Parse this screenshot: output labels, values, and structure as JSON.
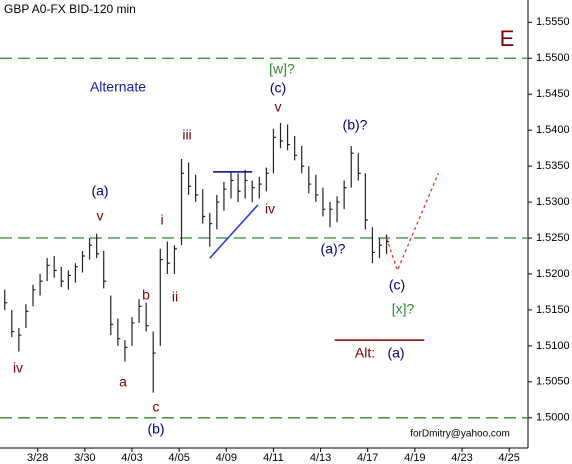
{
  "chart_data": {
    "type": "ohlc",
    "title": "GBP A0-FX BID-120 min",
    "bar_color": "#222222",
    "x": [
      1,
      2.5,
      4,
      5.5,
      7,
      8.5,
      10,
      11.5,
      13,
      14.5,
      16,
      17.5,
      19,
      20.5,
      22,
      23.5,
      25,
      26.5,
      28,
      29.5,
      31,
      32.5,
      34,
      35.5,
      37,
      38.5,
      40,
      41.5,
      43,
      44.5,
      46,
      47.5,
      49,
      50.5,
      52,
      53.5,
      55,
      56.5,
      58,
      59.5,
      61,
      62.5,
      64,
      65.5,
      67,
      68.5,
      70,
      71.5,
      73,
      74.5,
      76,
      77.5,
      79,
      80.5,
      82
    ],
    "high": [
      1.5178,
      1.515,
      1.5125,
      1.5158,
      1.5185,
      1.52,
      1.5222,
      1.5225,
      1.521,
      1.5205,
      1.5215,
      1.5232,
      1.525,
      1.5256,
      1.5232,
      1.517,
      1.5138,
      1.5108,
      1.514,
      1.5165,
      1.516,
      1.512,
      1.5235,
      1.5245,
      1.524,
      1.536,
      1.5355,
      1.5338,
      1.5318,
      1.5285,
      1.531,
      1.5328,
      1.5342,
      1.534,
      1.5345,
      1.533,
      1.5335,
      1.5348,
      1.5402,
      1.541,
      1.5408,
      1.5392,
      1.5378,
      1.535,
      1.5338,
      1.532,
      1.53,
      1.5308,
      1.533,
      1.5378,
      1.5368,
      1.534,
      1.5265,
      1.525,
      1.5255
    ],
    "low": [
      1.515,
      1.5112,
      1.5092,
      1.5125,
      1.5155,
      1.517,
      1.519,
      1.5195,
      1.5182,
      1.5178,
      1.5188,
      1.5202,
      1.522,
      1.5222,
      1.518,
      1.5115,
      1.51,
      1.5078,
      1.51,
      1.5132,
      1.512,
      1.5035,
      1.51,
      1.52,
      1.52,
      1.524,
      1.531,
      1.53,
      1.527,
      1.5238,
      1.5262,
      1.5288,
      1.5305,
      1.53,
      1.5305,
      1.53,
      1.5305,
      1.5315,
      1.534,
      1.5375,
      1.5372,
      1.5358,
      1.534,
      1.5312,
      1.53,
      1.528,
      1.5265,
      1.5272,
      1.529,
      1.532,
      1.533,
      1.5262,
      1.5215,
      1.5222,
      1.5228
    ],
    "close": [
      1.516,
      1.512,
      1.5115,
      1.5148,
      1.5178,
      1.519,
      1.5212,
      1.5205,
      1.519,
      1.5198,
      1.521,
      1.5225,
      1.524,
      1.5228,
      1.519,
      1.513,
      1.511,
      1.5098,
      1.5132,
      1.5155,
      1.5128,
      1.509,
      1.522,
      1.5215,
      1.5235,
      1.534,
      1.5322,
      1.531,
      1.528,
      1.527,
      1.53,
      1.5318,
      1.533,
      1.5315,
      1.533,
      1.532,
      1.5325,
      1.534,
      1.539,
      1.5385,
      1.538,
      1.5365,
      1.535,
      1.5325,
      1.531,
      1.529,
      1.529,
      1.53,
      1.532,
      1.5368,
      1.534,
      1.5275,
      1.523,
      1.524,
      1.5245
    ],
    "xlim": [
      0,
      112
    ],
    "ylim": [
      1.4958,
      1.5581
    ],
    "xticks": [
      {
        "value": 8,
        "label": "3/28"
      },
      {
        "value": 18,
        "label": "3/30"
      },
      {
        "value": 28,
        "label": "4/03"
      },
      {
        "value": 38,
        "label": "4/05"
      },
      {
        "value": 48,
        "label": "4/09"
      },
      {
        "value": 58,
        "label": "4/11"
      },
      {
        "value": 68,
        "label": "4/13"
      },
      {
        "value": 78,
        "label": "4/17"
      },
      {
        "value": 88,
        "label": "4/19"
      },
      {
        "value": 98,
        "label": "4/23"
      },
      {
        "value": 108,
        "label": "4/25"
      }
    ],
    "yticks": [
      {
        "value": 1.5,
        "label": "1.5000"
      },
      {
        "value": 1.505,
        "label": "1.5050"
      },
      {
        "value": 1.51,
        "label": "1.5100"
      },
      {
        "value": 1.515,
        "label": "1.5150"
      },
      {
        "value": 1.52,
        "label": "1.5200"
      },
      {
        "value": 1.525,
        "label": "1.5250"
      },
      {
        "value": 1.53,
        "label": "1.5300"
      },
      {
        "value": 1.535,
        "label": "1.5350"
      },
      {
        "value": 1.54,
        "label": "1.5400"
      },
      {
        "value": 1.545,
        "label": "1.5450"
      },
      {
        "value": 1.55,
        "label": "1.5500"
      },
      {
        "value": 1.555,
        "label": "1.5550"
      }
    ],
    "levels": [
      1.55,
      1.525,
      1.5
    ],
    "level_color": "#2e8b2e",
    "lines": [
      {
        "x": [
          44.5,
          54.7
        ],
        "y": [
          1.5222,
          1.5296
        ],
        "color": "#3344cc",
        "dashed": false
      },
      {
        "x": [
          45.2,
          53.5
        ],
        "y": [
          1.5342,
          1.5342
        ],
        "color": "#000080",
        "dashed": false
      },
      {
        "x": [
          71,
          90
        ],
        "y": [
          1.5108,
          1.5108
        ],
        "color": "#800000",
        "dashed": false
      },
      {
        "x": [
          82,
          84.3,
          93
        ],
        "y": [
          1.525,
          1.5205,
          1.534
        ],
        "color": "#e03030",
        "dashed": true
      }
    ],
    "annotations": [
      {
        "text": "E",
        "color": "#800000"
      },
      {
        "text": "Alternate",
        "color": "#1a1aa6"
      },
      {
        "text": "[w]?",
        "color": "#2e8b2e"
      },
      {
        "text": "(c)",
        "color": "#000080"
      },
      {
        "text": "v",
        "color": "#800000"
      },
      {
        "text": "iii",
        "color": "#800000"
      },
      {
        "text": "(b)?",
        "color": "#000080"
      },
      {
        "text": "(a)",
        "color": "#000080"
      },
      {
        "text": "v",
        "color": "#800000"
      },
      {
        "text": "i",
        "color": "#800000"
      },
      {
        "text": "iv",
        "color": "#800000"
      },
      {
        "text": "(a)?",
        "color": "#000080"
      },
      {
        "text": "b",
        "color": "#800000"
      },
      {
        "text": "ii",
        "color": "#800000"
      },
      {
        "text": "(c)",
        "color": "#000080"
      },
      {
        "text": "[x]?",
        "color": "#2e8b2e"
      },
      {
        "text": "Alt:",
        "color": "#800000"
      },
      {
        "text": "(a)",
        "color": "#000080"
      },
      {
        "text": "iv",
        "color": "#800000"
      },
      {
        "text": "a",
        "color": "#800000"
      },
      {
        "text": "c",
        "color": "#800000"
      },
      {
        "text": "(b)",
        "color": "#000080"
      },
      {
        "text": "forDmitry@yahoo.com",
        "color": "#000000"
      }
    ]
  }
}
